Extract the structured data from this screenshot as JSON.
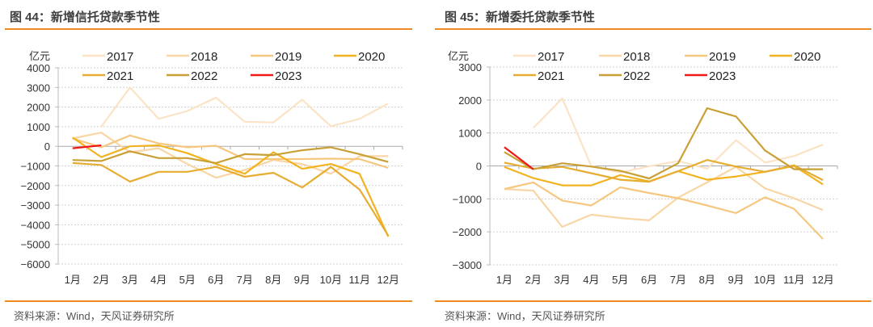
{
  "charts": [
    {
      "title": "图 44：新增信托贷款季节性",
      "source": "资料来源：Wind，天风证券研究所"
    },
    {
      "title": "图 45：新增委托贷款季节性",
      "source": "资料来源：Wind，天风证券研究所"
    }
  ],
  "chart_data": [
    {
      "type": "line",
      "title": "图 44：新增信托贷款季节性",
      "ylabel": "亿元",
      "ylim": [
        -6000,
        4000
      ],
      "yticks": [
        4000,
        3000,
        2000,
        1000,
        0,
        -1000,
        -2000,
        -3000,
        -4000,
        -5000,
        -6000
      ],
      "categories": [
        "1月",
        "2月",
        "3月",
        "4月",
        "5月",
        "6月",
        "7月",
        "8月",
        "9月",
        "10月",
        "11月",
        "12月"
      ],
      "grid": true,
      "legend": "top",
      "series": [
        {
          "name": "2017",
          "color": "#fbe3c6",
          "values": [
            null,
            1000,
            3000,
            1400,
            1800,
            2480,
            1250,
            1220,
            2380,
            1020,
            1400,
            2180
          ]
        },
        {
          "name": "2018",
          "color": "#f9d6a6",
          "values": [
            400,
            700,
            -300,
            -100,
            -900,
            -1600,
            -1200,
            -700,
            -900,
            -1400,
            -500,
            -500
          ]
        },
        {
          "name": "2019",
          "color": "#f6c77f",
          "values": [
            400,
            -50,
            550,
            150,
            -50,
            30,
            -650,
            -650,
            -650,
            -630,
            -650,
            -1100
          ]
        },
        {
          "name": "2020",
          "color": "#f2b320",
          "values": [
            450,
            -550,
            0,
            50,
            -350,
            -900,
            -1400,
            -300,
            -1150,
            -900,
            -1400,
            -4600
          ]
        },
        {
          "name": "2021",
          "color": "#e6ad32",
          "values": [
            -850,
            -950,
            -1800,
            -1300,
            -1300,
            -1050,
            -1550,
            -1350,
            -2100,
            -1050,
            -2200,
            -4550
          ]
        },
        {
          "name": "2022",
          "color": "#c9a035",
          "values": [
            -700,
            -750,
            -250,
            -600,
            -600,
            -850,
            -400,
            -450,
            -200,
            -50,
            -400,
            -800
          ]
        },
        {
          "name": "2023",
          "color": "#f01818",
          "values": [
            -100,
            50,
            null,
            null,
            null,
            null,
            null,
            null,
            null,
            null,
            null,
            null
          ]
        }
      ]
    },
    {
      "type": "line",
      "title": "图 45：新增委托贷款季节性",
      "ylabel": "亿元",
      "ylim": [
        -3000,
        3000
      ],
      "yticks": [
        3000,
        2000,
        1000,
        0,
        -1000,
        -2000,
        -3000
      ],
      "categories": [
        "1月",
        "2月",
        "3月",
        "4月",
        "5月",
        "6月",
        "7月",
        "8月",
        "9月",
        "10月",
        "11月",
        "12月"
      ],
      "grid": true,
      "legend": "top",
      "series": [
        {
          "name": "2017",
          "color": "#fbe3c6",
          "values": [
            null,
            1150,
            2050,
            0,
            -200,
            -10,
            150,
            -80,
            780,
            100,
            300,
            650
          ]
        },
        {
          "name": "2018",
          "color": "#f9d6a6",
          "values": [
            -700,
            -750,
            -1850,
            -1480,
            -1580,
            -1650,
            -960,
            -500,
            -30,
            -680,
            -980,
            -1340
          ]
        },
        {
          "name": "2019",
          "color": "#f6c77f",
          "values": [
            -700,
            -500,
            -1050,
            -1200,
            -650,
            -820,
            -980,
            -1200,
            -1430,
            -950,
            -1300,
            -2220
          ]
        },
        {
          "name": "2020",
          "color": "#f2b320",
          "values": [
            -30,
            -370,
            -590,
            -590,
            -280,
            -470,
            -160,
            -420,
            -320,
            -180,
            0,
            -560
          ]
        },
        {
          "name": "2021",
          "color": "#e6ad32",
          "values": [
            100,
            -80,
            -30,
            -220,
            -420,
            -480,
            -160,
            180,
            -20,
            -180,
            20,
            -430
          ]
        },
        {
          "name": "2022",
          "color": "#c9a035",
          "values": [
            420,
            -100,
            80,
            -20,
            -150,
            -380,
            80,
            1750,
            1500,
            470,
            -100,
            -100
          ]
        },
        {
          "name": "2023",
          "color": "#f01818",
          "values": [
            570,
            -100,
            null,
            null,
            null,
            null,
            null,
            null,
            null,
            null,
            null,
            null
          ]
        }
      ]
    }
  ]
}
